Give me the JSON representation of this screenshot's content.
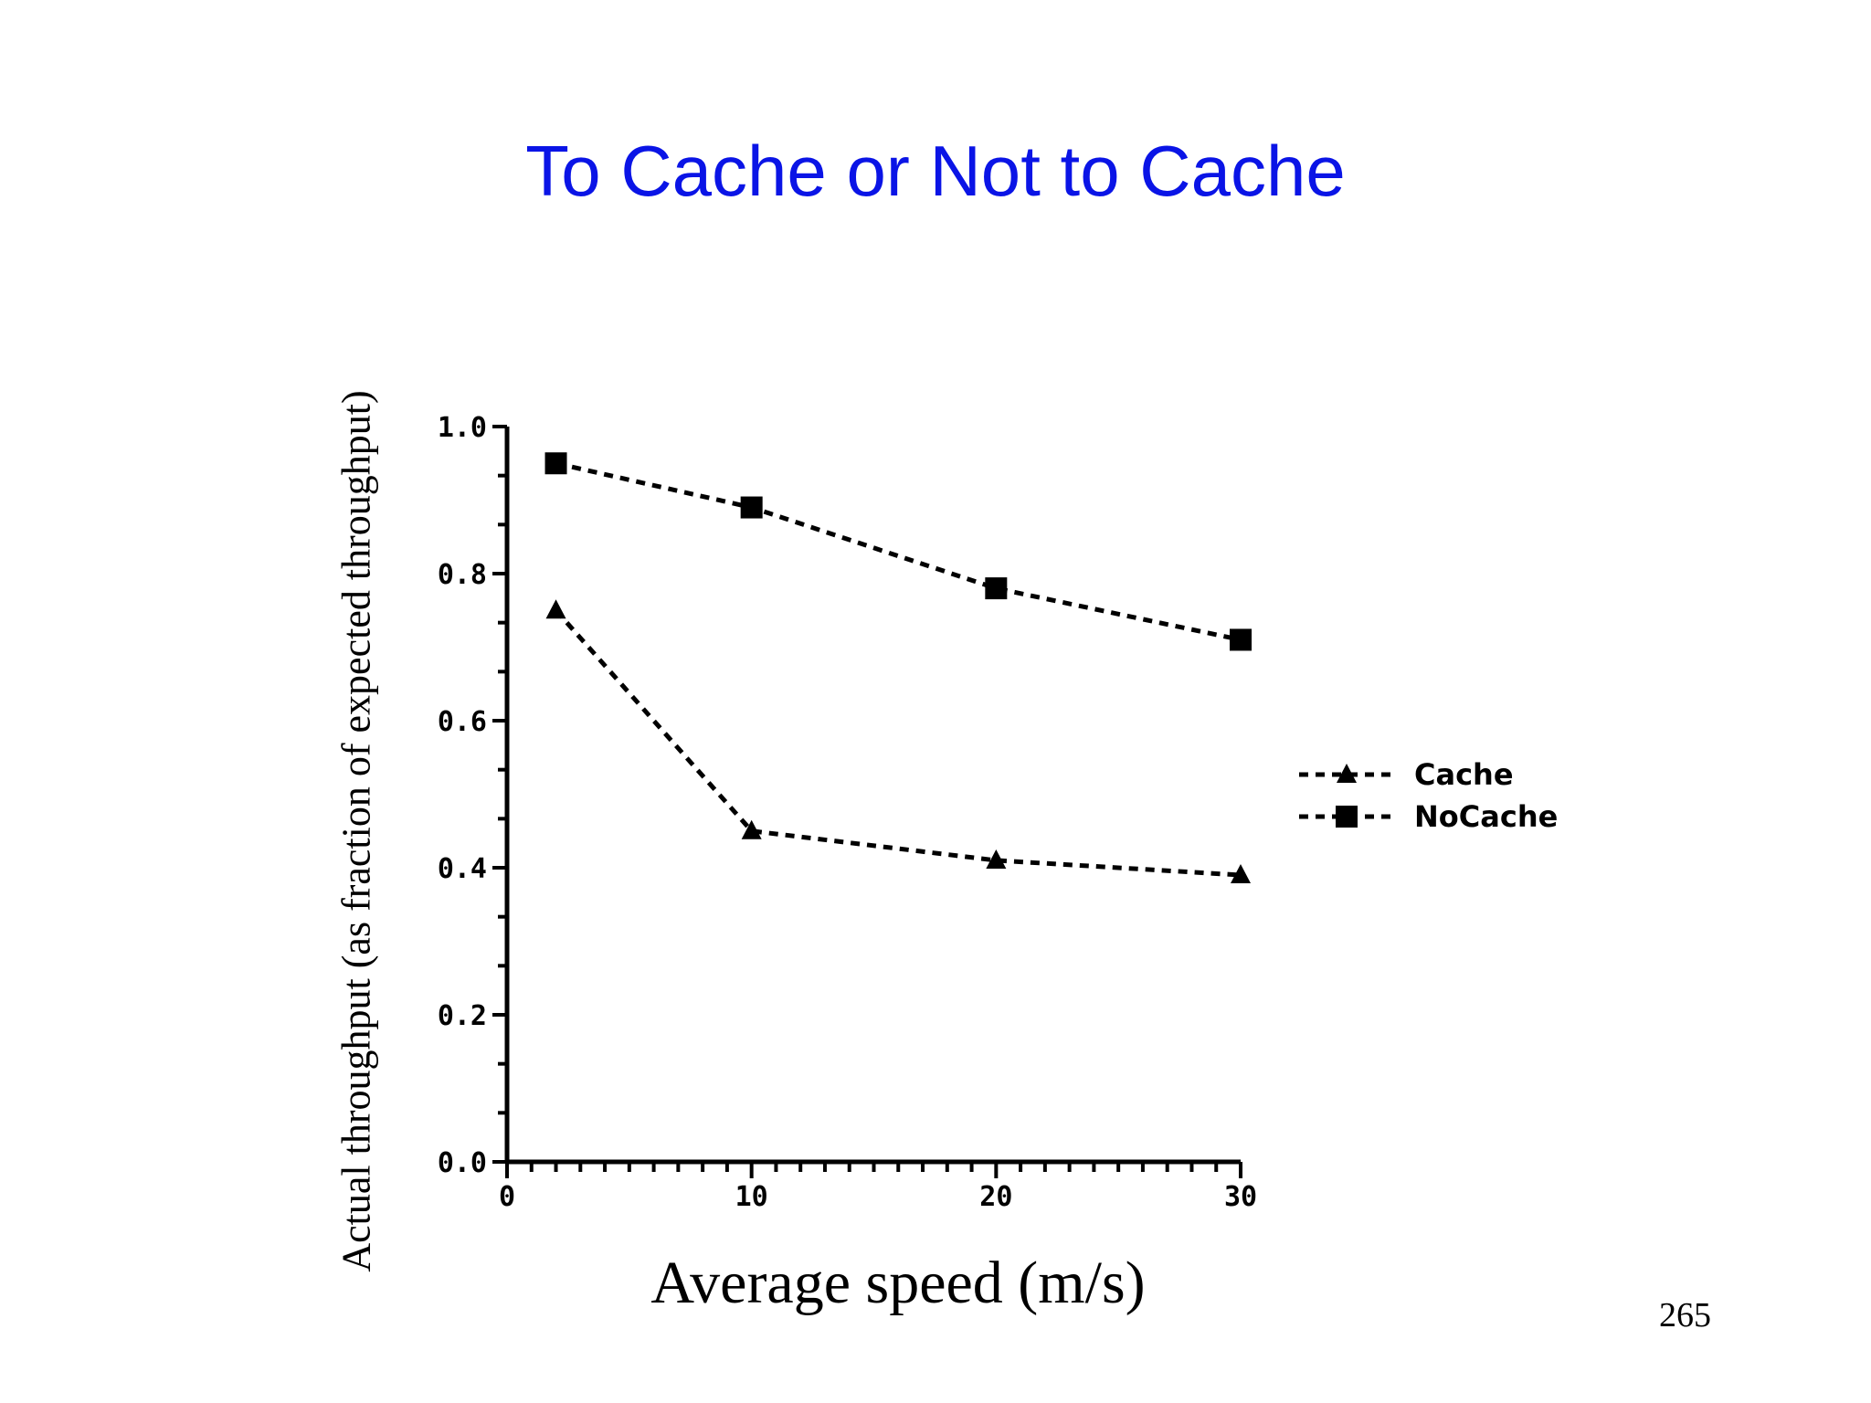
{
  "slide": {
    "title": "To Cache or Not to Cache",
    "page_number": "265",
    "title_color": "#0a14e6"
  },
  "chart_data": {
    "type": "line",
    "title": "",
    "xlabel": "Average speed (m/s)",
    "ylabel": "Actual throughput (as fraction of expected throughput)",
    "xlim": [
      0,
      30
    ],
    "ylim": [
      0.0,
      1.0
    ],
    "x_ticks": [
      0,
      10,
      20,
      30
    ],
    "x_tick_labels": [
      "0",
      "10",
      "20",
      "30"
    ],
    "y_ticks": [
      0.0,
      0.2,
      0.4,
      0.6,
      0.8,
      1.0
    ],
    "y_tick_labels": [
      "0.0",
      "0.2",
      "0.4",
      "0.6",
      "0.8",
      "1.0"
    ],
    "grid": false,
    "legend_position": "right",
    "series": [
      {
        "name": "Cache",
        "marker": "triangle",
        "line_style": "dotted",
        "color": "#000000",
        "x": [
          2,
          10,
          20,
          30
        ],
        "y": [
          0.75,
          0.45,
          0.41,
          0.39
        ]
      },
      {
        "name": "NoCache",
        "marker": "square",
        "line_style": "dotted",
        "color": "#000000",
        "x": [
          2,
          10,
          20,
          30
        ],
        "y": [
          0.95,
          0.89,
          0.78,
          0.71
        ]
      }
    ]
  }
}
